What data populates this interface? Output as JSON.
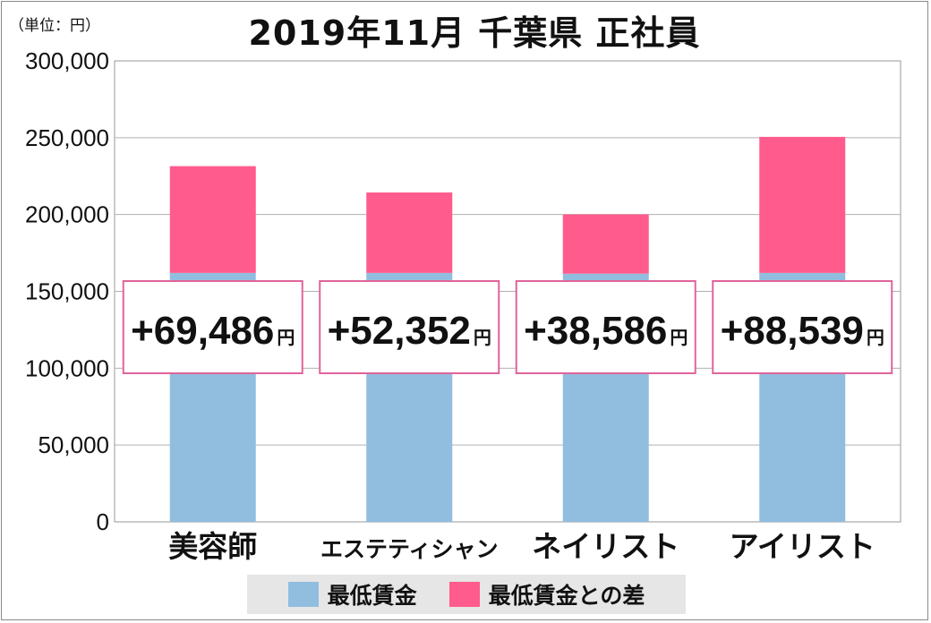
{
  "unit_label": "（単位：円）",
  "chart_data": {
    "type": "bar",
    "stacked": true,
    "title": "2019年11月 千葉県 正社員",
    "categories": [
      "美容師",
      "エステティシャン",
      "ネイリスト",
      "アイリスト"
    ],
    "series": [
      {
        "name": "最低賃金",
        "color": "#91bddf",
        "values": [
          162000,
          162000,
          161500,
          162000
        ]
      },
      {
        "name": "最低賃金との差",
        "color": "#ff5b8c",
        "values": [
          69486,
          52352,
          38586,
          88539
        ]
      }
    ],
    "ylim": [
      0,
      300000
    ],
    "y_ticks": [
      0,
      50000,
      100000,
      150000,
      200000,
      250000,
      300000
    ],
    "y_tick_labels": [
      "0",
      "50,000",
      "100,000",
      "150,000",
      "200,000",
      "250,000",
      "300,000"
    ],
    "callouts": [
      {
        "value": "+69,486",
        "unit": "円"
      },
      {
        "value": "+52,352",
        "unit": "円"
      },
      {
        "value": "+38,586",
        "unit": "円"
      },
      {
        "value": "+88,539",
        "unit": "円"
      }
    ],
    "grid": true,
    "legend_position": "bottom"
  }
}
